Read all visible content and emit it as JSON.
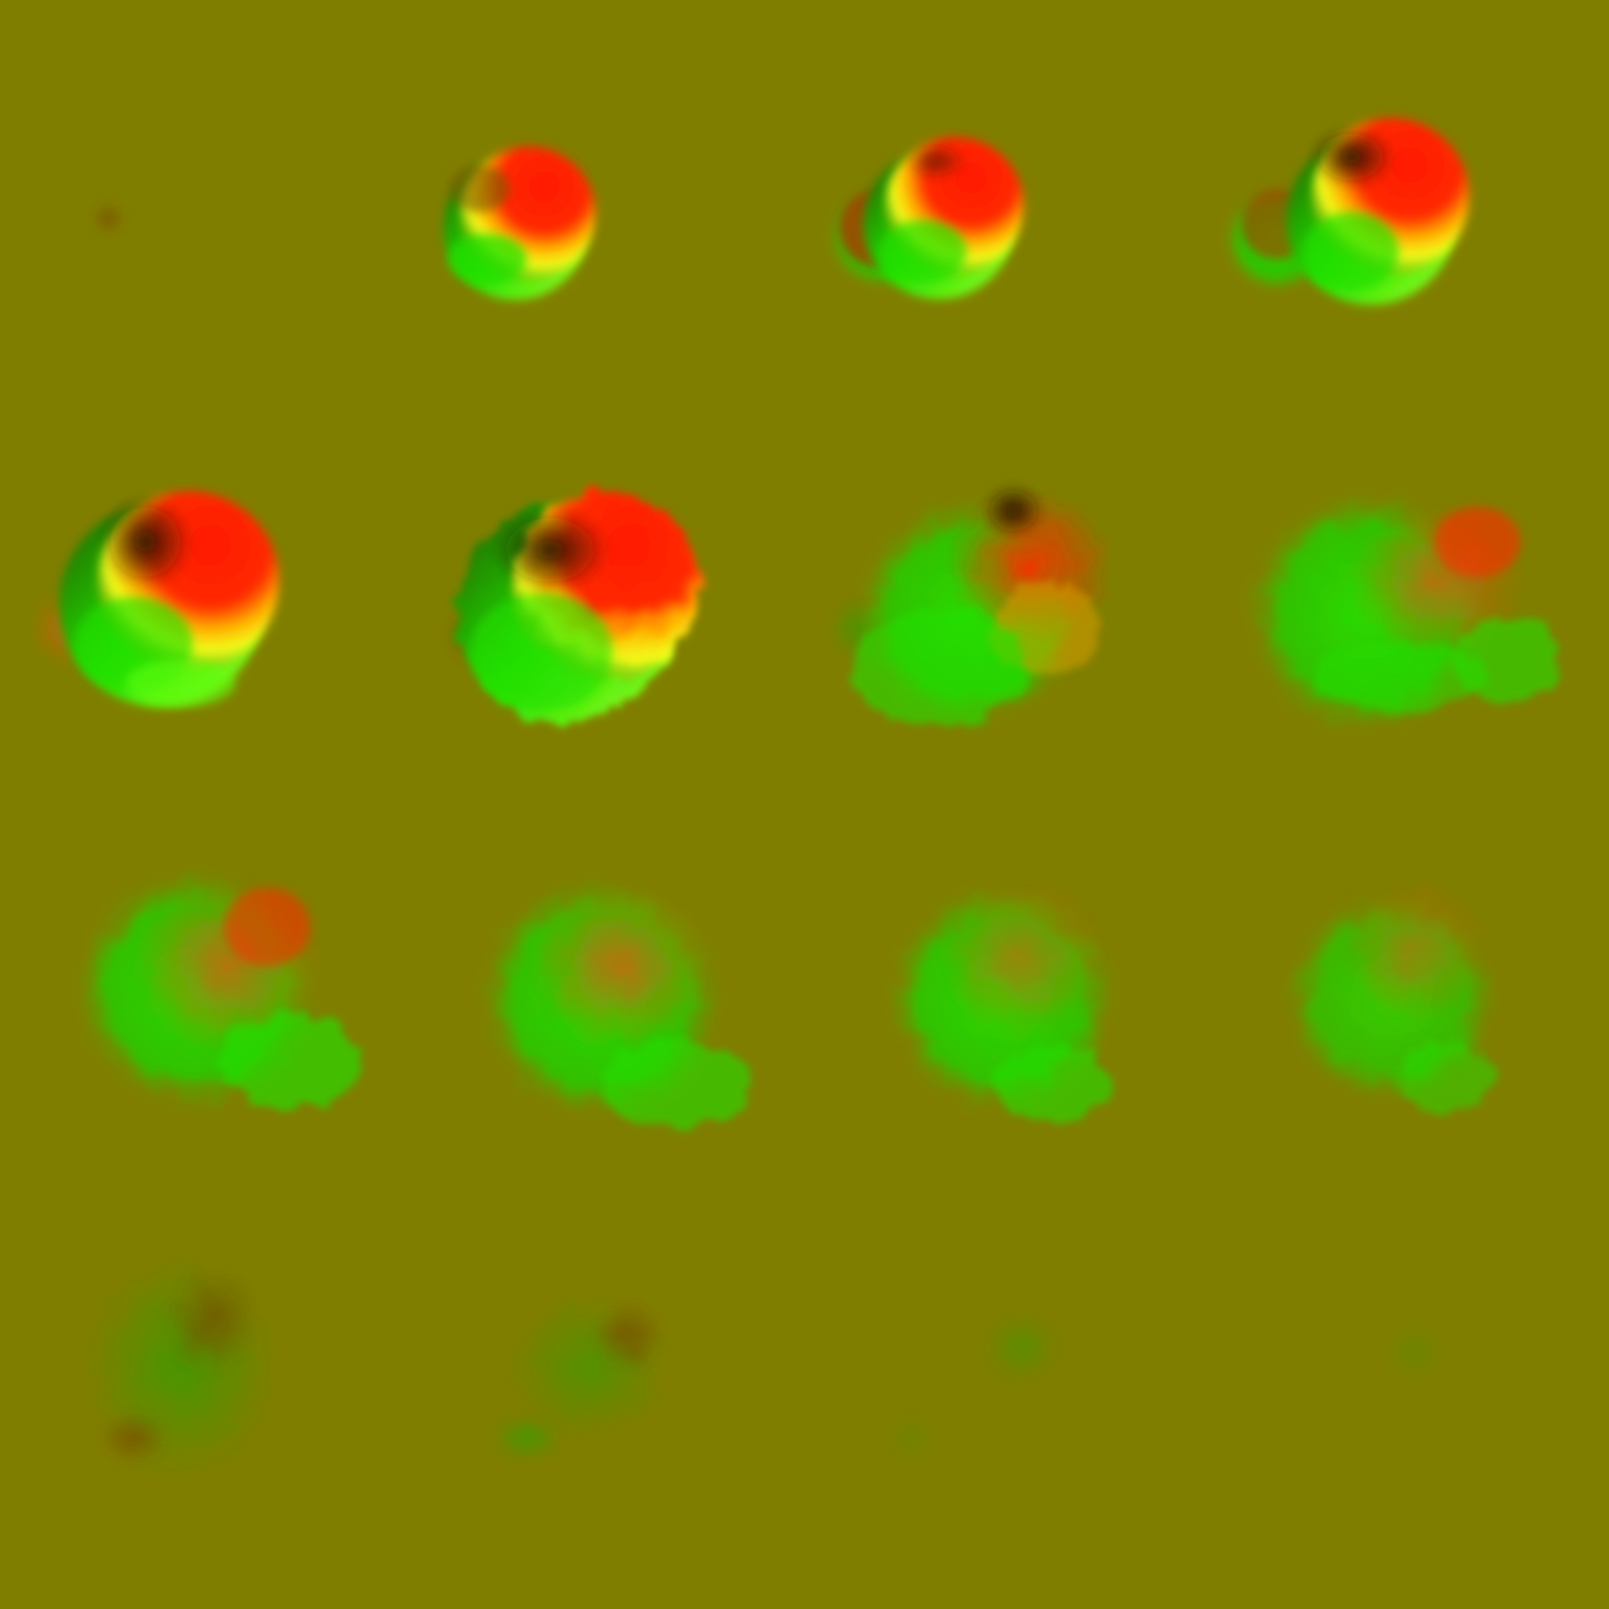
{
  "background_color": "#807e00",
  "palette": {
    "red": "#ff1a00",
    "green": "#22e000",
    "yellow": "#f2ff1a",
    "shadow": "#3a2e00",
    "dark_green": "#1f5a00"
  },
  "frames": [
    {
      "index": 1,
      "description_icon": "tiny-smudge-icon"
    },
    {
      "index": 2,
      "description_icon": "sphere-icon"
    },
    {
      "index": 3,
      "description_icon": "double-sphere-icon"
    },
    {
      "index": 4,
      "description_icon": "double-sphere-icon"
    },
    {
      "index": 5,
      "description_icon": "blob-icon"
    },
    {
      "index": 6,
      "description_icon": "blob-icon"
    },
    {
      "index": 7,
      "description_icon": "lumpy-blob-icon"
    },
    {
      "index": 8,
      "description_icon": "lumpy-blob-icon"
    },
    {
      "index": 9,
      "description_icon": "cluster-icon"
    },
    {
      "index": 10,
      "description_icon": "cluster-icon"
    },
    {
      "index": 11,
      "description_icon": "cluster-icon"
    },
    {
      "index": 12,
      "description_icon": "cluster-icon"
    },
    {
      "index": 13,
      "description_icon": "fading-cluster-icon"
    },
    {
      "index": 14,
      "description_icon": "fading-cluster-icon"
    },
    {
      "index": 15,
      "description_icon": "faint-smudge-icon"
    },
    {
      "index": 16,
      "description_icon": "faint-smudge-icon"
    }
  ]
}
